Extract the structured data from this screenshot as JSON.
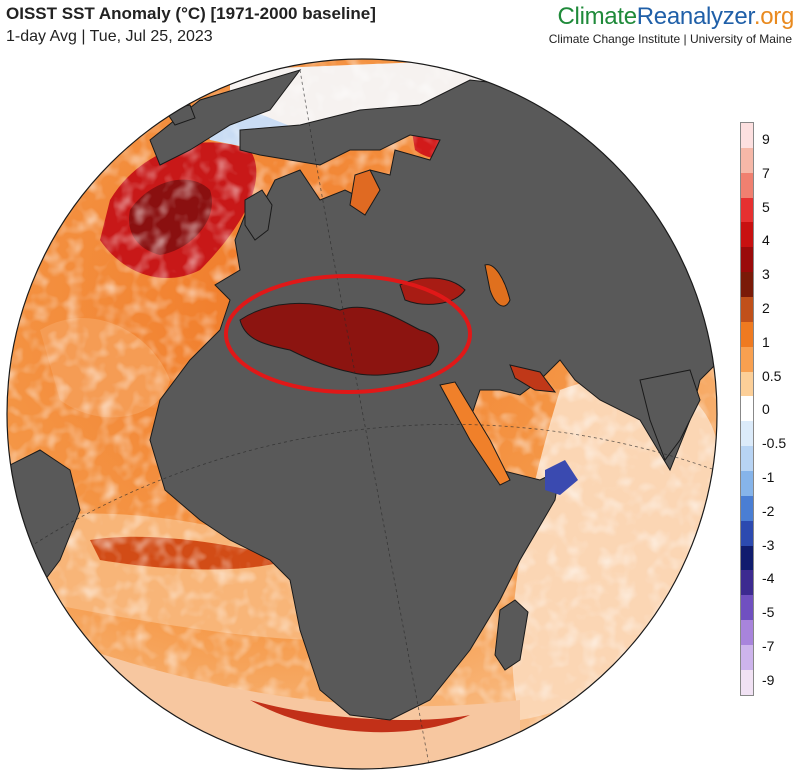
{
  "header": {
    "title": "OISST SST Anomaly (°C) [1971-2000 baseline]",
    "subtitle": "1-day Avg | Tue, Jul 25, 2023"
  },
  "brand": {
    "name_part1": "Climate",
    "name_part2": "Reanalyzer",
    "name_part3": ".org",
    "affiliation": "Climate Change Institute | University of Maine",
    "colors": {
      "part1": "#1f8a3a",
      "part2": "#1f5fa8",
      "part3": "#e98a1f"
    }
  },
  "map": {
    "projection": "orthographic",
    "variable": "sea surface temperature anomaly",
    "land_color": "#595959",
    "highlight": {
      "shape": "ellipse",
      "color": "#e01818",
      "region": "Mediterranean Sea"
    }
  },
  "colorbar": {
    "labels": [
      "9",
      "7",
      "5",
      "4",
      "3",
      "2",
      "1",
      "0.5",
      "0",
      "-0.5",
      "-1",
      "-2",
      "-3",
      "-4",
      "-5",
      "-7",
      "-9"
    ],
    "colors": [
      "#fde0e0",
      "#f6b8a8",
      "#f08070",
      "#e63030",
      "#c81010",
      "#9a0a0a",
      "#7a1a08",
      "#c0501a",
      "#ef7a20",
      "#f8a050",
      "#fccf98",
      "#ffffff",
      "#dcebfa",
      "#b8d4f4",
      "#86b4ea",
      "#4a7ed4",
      "#2c4ab0",
      "#101c6e",
      "#3c2a90",
      "#7050c0",
      "#a884dc",
      "#cdb4ec",
      "#f1e2f4"
    ]
  }
}
